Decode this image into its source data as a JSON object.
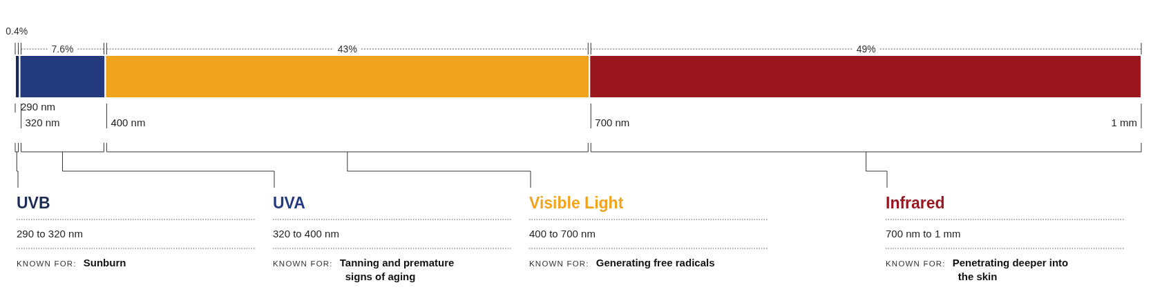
{
  "chart_data": {
    "type": "bar",
    "orientation": "horizontal",
    "stacked": true,
    "categories": [
      null
    ],
    "tick_labels": false,
    "legend": "bottom",
    "series": [
      {
        "name": "UVB",
        "color": "#1c2a56",
        "values": [
          0.4
        ],
        "value_labels": [
          "0.4%"
        ]
      },
      {
        "name": "UVA",
        "color": "#243a7e",
        "values": [
          7.6
        ],
        "value_labels": [
          "7.6%"
        ]
      },
      {
        "name": "Visible Light",
        "color": "#f2a31e",
        "values": [
          43
        ],
        "value_labels": [
          "43%"
        ]
      },
      {
        "name": "Infrared",
        "color": "#9b1720",
        "values": [
          49
        ],
        "value_labels": [
          "49%"
        ]
      }
    ],
    "annotations": [
      "290 nm",
      "320 nm",
      "400 nm",
      "700 nm",
      "1 mm",
      "290 to 320 nm",
      "KNOWN FOR:",
      "Sunburn",
      "320 to 400 nm",
      "KNOWN FOR:",
      "Tanning and premature signs of aging",
      "400 to 700 nm",
      "KNOWN FOR:",
      "Generating free radicals",
      "700 nm to 1 mm",
      "KNOWN FOR:",
      "Penetrating deeper into the skin"
    ]
  }
}
